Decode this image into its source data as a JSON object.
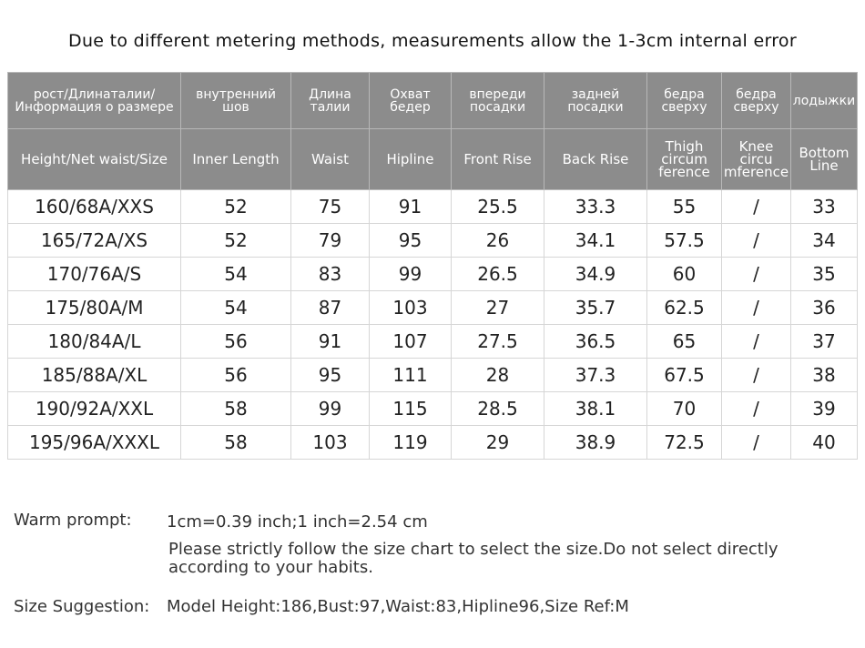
{
  "title": "Due to different metering methods, measurements allow the 1-3cm internal error",
  "table": {
    "header_ru": [
      [
        "рост/Длинаталии/",
        "Информация о размере"
      ],
      [
        "внутренний",
        "шов"
      ],
      [
        "Длина",
        "талии"
      ],
      [
        "Охват",
        "бедер"
      ],
      [
        "впереди",
        "посадки"
      ],
      [
        "задней",
        "посадки"
      ],
      [
        "бедра",
        "сверху"
      ],
      [
        "бедра",
        "сверху"
      ],
      [
        "лодыжки"
      ]
    ],
    "header_en": [
      [
        "Height/Net waist/Size"
      ],
      [
        "Inner  Length"
      ],
      [
        "Waist"
      ],
      [
        "Hipline"
      ],
      [
        "Front Rise"
      ],
      [
        "Back Rise"
      ],
      [
        "Thigh",
        "circum",
        "ference"
      ],
      [
        "Knee",
        "circu",
        "mference"
      ],
      [
        "Bottom",
        "Line"
      ]
    ],
    "rows": [
      [
        "160/68A/XXS",
        "52",
        "75",
        "91",
        "25.5",
        "33.3",
        "55",
        "/",
        "33"
      ],
      [
        "165/72A/XS",
        "52",
        "79",
        "95",
        "26",
        "34.1",
        "57.5",
        "/",
        "34"
      ],
      [
        "170/76A/S",
        "54",
        "83",
        "99",
        "26.5",
        "34.9",
        "60",
        "/",
        "35"
      ],
      [
        "175/80A/M",
        "54",
        "87",
        "103",
        "27",
        "35.7",
        "62.5",
        "/",
        "36"
      ],
      [
        "180/84A/L",
        "56",
        "91",
        "107",
        "27.5",
        "36.5",
        "65",
        "/",
        "37"
      ],
      [
        "185/88A/XL",
        "56",
        "95",
        "111",
        "28",
        "37.3",
        "67.5",
        "/",
        "38"
      ],
      [
        "190/92A/XXL",
        "58",
        "99",
        "115",
        "28.5",
        "38.1",
        "70",
        "/",
        "39"
      ],
      [
        "195/96A/XXXL",
        "58",
        "103",
        "119",
        "29",
        "38.9",
        "72.5",
        "/",
        "40"
      ]
    ]
  },
  "notes": {
    "warm_label": "Warm prompt:",
    "warm_line1": "1cm=0.39 inch;1 inch=2.54 cm",
    "warm_line2": "Please strictly follow the size chart  to select the size.Do not select directly according to your habits.",
    "suggest_label": "Size Suggestion:",
    "suggest_text": "Model Height:186,Bust:97,Waist:83,Hipline96,Size Ref:M"
  }
}
